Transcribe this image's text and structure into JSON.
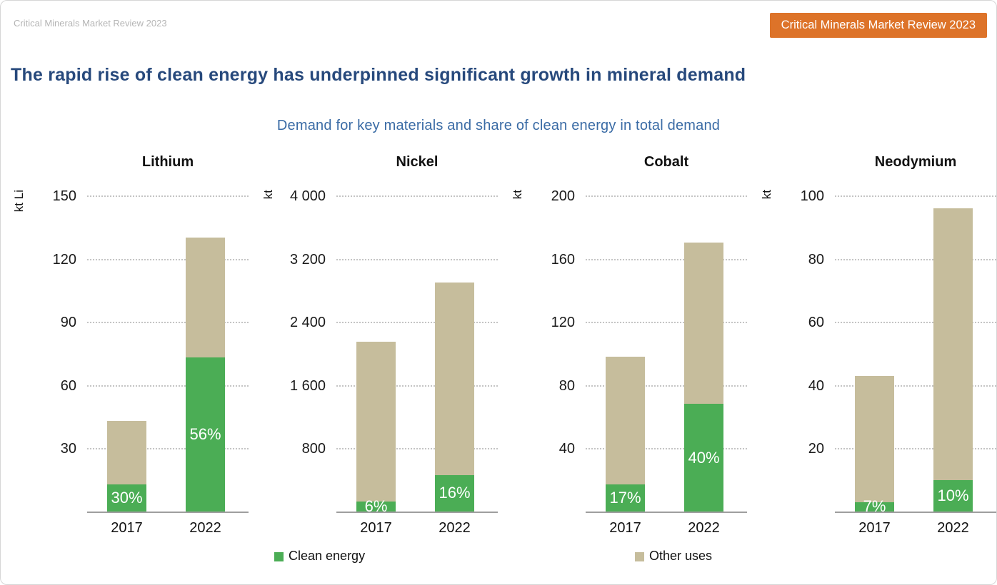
{
  "header": {
    "watermark": "Critical Minerals Market Review 2023",
    "badge": "Critical Minerals Market Review 2023"
  },
  "title": "The rapid rise of clean energy has underpinned significant growth in mineral demand",
  "subtitle": "Demand for key materials and share of clean energy in total demand",
  "colors": {
    "clean_energy": "#4bad55",
    "other_uses": "#c6bd9c",
    "badge_orange": "#dd7329",
    "title_blue": "#27497c",
    "subtitle_blue": "#3a6ba5",
    "watermark_gray": "#b5b5b5"
  },
  "legend": {
    "position": "bottom",
    "items": [
      {
        "label": "Clean energy",
        "color": "#4bad55"
      },
      {
        "label": "Other uses",
        "color": "#c6bd9c"
      }
    ]
  },
  "chart_data": [
    {
      "type": "bar",
      "stacked": true,
      "grid": "dotted-horizontal",
      "title": "Lithium",
      "ylabel": "kt Li",
      "ylim": [
        0,
        150
      ],
      "yticks": [
        150,
        120,
        90,
        60,
        30
      ],
      "ytick_labels": [
        "150",
        "120",
        "90",
        "60",
        "30"
      ],
      "categories": [
        "2017",
        "2022"
      ],
      "series": [
        {
          "name": "Clean energy",
          "values": [
            13,
            73
          ]
        },
        {
          "name": "Other uses",
          "values": [
            30,
            57
          ]
        }
      ],
      "bars": [
        {
          "year": "2017",
          "total": 43,
          "clean": 13,
          "share": "30%"
        },
        {
          "year": "2022",
          "total": 130,
          "clean": 73,
          "share": "56%"
        }
      ]
    },
    {
      "type": "bar",
      "stacked": true,
      "grid": "dotted-horizontal",
      "title": "Nickel",
      "ylabel": "kt",
      "ylim": [
        0,
        4000
      ],
      "yticks": [
        4000,
        3200,
        2400,
        1600,
        800
      ],
      "ytick_labels": [
        "4 000",
        "3 200",
        "2 400",
        "1 600",
        "800"
      ],
      "categories": [
        "2017",
        "2022"
      ],
      "series": [
        {
          "name": "Clean energy",
          "values": [
            130,
            465
          ]
        },
        {
          "name": "Other uses",
          "values": [
            2020,
            2435
          ]
        }
      ],
      "bars": [
        {
          "year": "2017",
          "total": 2150,
          "clean": 130,
          "share": "6%"
        },
        {
          "year": "2022",
          "total": 2900,
          "clean": 465,
          "share": "16%"
        }
      ]
    },
    {
      "type": "bar",
      "stacked": true,
      "grid": "dotted-horizontal",
      "title": "Cobalt",
      "ylabel": "kt",
      "ylim": [
        0,
        200
      ],
      "yticks": [
        200,
        160,
        120,
        80,
        40
      ],
      "ytick_labels": [
        "200",
        "160",
        "120",
        "80",
        "40"
      ],
      "categories": [
        "2017",
        "2022"
      ],
      "series": [
        {
          "name": "Clean energy",
          "values": [
            17,
            68
          ]
        },
        {
          "name": "Other uses",
          "values": [
            81,
            102
          ]
        }
      ],
      "bars": [
        {
          "year": "2017",
          "total": 98,
          "clean": 17,
          "share": "17%"
        },
        {
          "year": "2022",
          "total": 170,
          "clean": 68,
          "share": "40%"
        }
      ]
    },
    {
      "type": "bar",
      "stacked": true,
      "grid": "dotted-horizontal",
      "title": "Neodymium",
      "ylabel": "kt",
      "ylim": [
        0,
        100
      ],
      "yticks": [
        100,
        80,
        60,
        40,
        20
      ],
      "ytick_labels": [
        "100",
        "80",
        "60",
        "40",
        "20"
      ],
      "categories": [
        "2017",
        "2022"
      ],
      "series": [
        {
          "name": "Clean energy",
          "values": [
            3,
            10
          ]
        },
        {
          "name": "Other uses",
          "values": [
            40,
            86
          ]
        }
      ],
      "bars": [
        {
          "year": "2017",
          "total": 43,
          "clean": 3,
          "share": "7%"
        },
        {
          "year": "2022",
          "total": 96,
          "clean": 10,
          "share": "10%"
        }
      ]
    }
  ]
}
